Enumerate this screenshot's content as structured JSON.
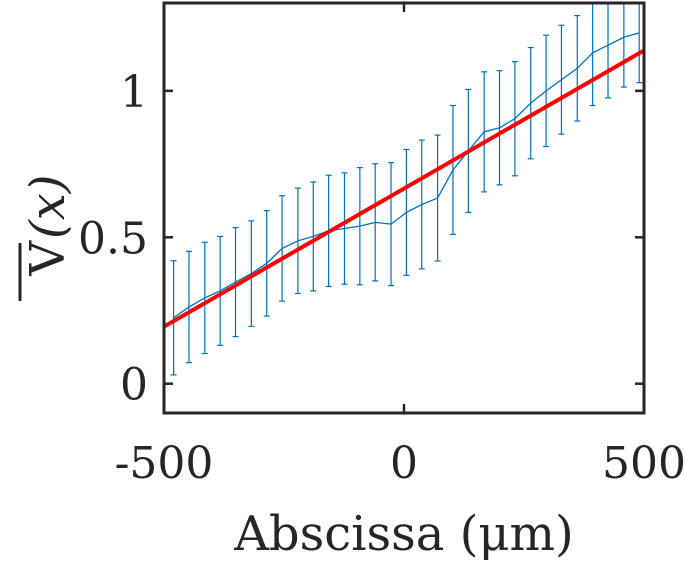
{
  "chart_data": {
    "type": "line",
    "xlabel": "Abscissa (μm)",
    "ylabel_base": "V",
    "ylabel_arg": "(x)",
    "xlim": [
      -500,
      500
    ],
    "ylim": [
      -0.1,
      1.3
    ],
    "x_ticks": [
      -500,
      0,
      500
    ],
    "x_tick_labels": [
      "-500",
      "0",
      "500"
    ],
    "y_ticks": [
      0,
      0.5,
      1
    ],
    "y_tick_labels": [
      "0",
      "0.5",
      "1"
    ],
    "grid": false,
    "legend": "none",
    "colors": {
      "measured": "#0072BD",
      "fit": "#FF0000",
      "axes": "#262626"
    },
    "series": [
      {
        "x": [
          -480,
          -448,
          -415,
          -383,
          -351,
          -318,
          -286,
          -254,
          -221,
          -189,
          -157,
          -124,
          -92,
          -60,
          -27,
          5,
          37,
          70,
          102,
          134,
          167,
          199,
          231,
          264,
          296,
          328,
          361,
          393,
          425,
          458,
          490
        ],
        "y": [
          0.225,
          0.262,
          0.293,
          0.317,
          0.347,
          0.376,
          0.411,
          0.462,
          0.488,
          0.503,
          0.522,
          0.53,
          0.538,
          0.551,
          0.545,
          0.585,
          0.612,
          0.634,
          0.73,
          0.795,
          0.86,
          0.874,
          0.905,
          0.958,
          1.0,
          1.038,
          1.077,
          1.13,
          1.156,
          1.183,
          1.198
        ],
        "err": [
          0.195,
          0.19,
          0.19,
          0.186,
          0.186,
          0.18,
          0.18,
          0.18,
          0.18,
          0.186,
          0.19,
          0.19,
          0.2,
          0.2,
          0.21,
          0.215,
          0.22,
          0.215,
          0.22,
          0.21,
          0.205,
          0.195,
          0.195,
          0.19,
          0.19,
          0.186,
          0.18,
          0.18,
          0.18,
          0.17,
          0.17
        ]
      },
      {
        "x": [
          -500,
          500
        ],
        "y": [
          0.195,
          1.138
        ]
      }
    ]
  }
}
